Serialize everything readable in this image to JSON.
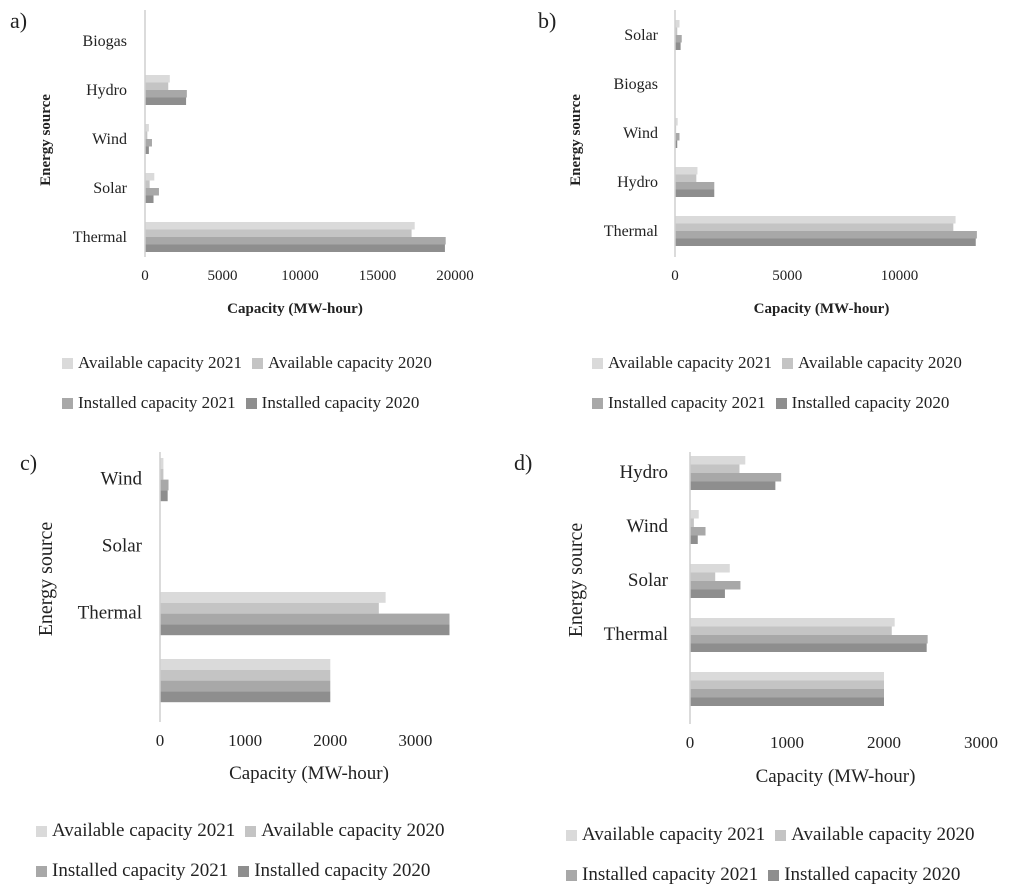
{
  "colors": {
    "available_2021": "#dadada",
    "available_2020": "#c4c4c4",
    "installed_2021": "#a8a8a8",
    "installed_2020": "#8e8e8e",
    "axis": "#cfcfcf",
    "text": "#222222"
  },
  "chart_data": [
    {
      "panel": "a)",
      "type": "bar",
      "orientation": "horizontal",
      "categories": [
        "Biogas",
        "Hydro",
        "Wind",
        "Solar",
        "Thermal"
      ],
      "series": [
        {
          "name": "Available capacity 2021",
          "values": [
            0,
            1600,
            250,
            600,
            17400
          ]
        },
        {
          "name": "Available capacity 2020",
          "values": [
            0,
            1500,
            150,
            300,
            17200
          ]
        },
        {
          "name": "Installed capacity 2021",
          "values": [
            0,
            2700,
            450,
            900,
            19400
          ]
        },
        {
          "name": "Installed capacity 2020",
          "values": [
            0,
            2650,
            250,
            550,
            19350
          ]
        }
      ],
      "xlabel": "Capacity (MW-hour)",
      "ylabel": "Energy source",
      "xlim": [
        0,
        20000
      ],
      "xticks": [
        "0",
        "5000",
        "10000",
        "15000",
        "20000"
      ],
      "legend_position": "bottom",
      "label_bold": true
    },
    {
      "panel": "b)",
      "type": "bar",
      "orientation": "horizontal",
      "categories": [
        "Solar",
        "Biogas",
        "Wind",
        "Hydro",
        "Thermal"
      ],
      "series": [
        {
          "name": "Available capacity 2021",
          "values": [
            200,
            0,
            120,
            1000,
            12500
          ]
        },
        {
          "name": "Available capacity 2020",
          "values": [
            100,
            0,
            50,
            950,
            12400
          ]
        },
        {
          "name": "Installed capacity 2021",
          "values": [
            300,
            0,
            200,
            1750,
            13450
          ]
        },
        {
          "name": "Installed capacity 2020",
          "values": [
            250,
            0,
            100,
            1750,
            13400
          ]
        }
      ],
      "xlabel": "Capacity (MW-hour)",
      "ylabel": "Energy source",
      "xlim": [
        0,
        13500
      ],
      "xticks": [
        "0",
        "5000",
        "10000"
      ],
      "legend_position": "bottom",
      "label_bold": true
    },
    {
      "panel": "c)",
      "type": "bar",
      "orientation": "horizontal",
      "categories": [
        "Wind",
        "Solar",
        "Thermal",
        ""
      ],
      "series": [
        {
          "name": "Available capacity 2021",
          "values": [
            40,
            0,
            2650,
            2000
          ]
        },
        {
          "name": "Available capacity 2020",
          "values": [
            40,
            0,
            2570,
            2000
          ]
        },
        {
          "name": "Installed capacity 2021",
          "values": [
            100,
            0,
            3400,
            2000
          ]
        },
        {
          "name": "Installed capacity 2020",
          "values": [
            90,
            0,
            3400,
            2000
          ]
        }
      ],
      "xlabel": "Capacity (MW-hour)",
      "ylabel": "Energy source",
      "xlim": [
        0,
        3500
      ],
      "xticks": [
        "0",
        "1000",
        "2000",
        "3000"
      ],
      "legend_position": "bottom",
      "label_bold": false
    },
    {
      "panel": "d)",
      "type": "bar",
      "orientation": "horizontal",
      "categories": [
        "Hydro",
        "Wind",
        "Solar",
        "Thermal",
        ""
      ],
      "series": [
        {
          "name": "Available capacity 2021",
          "values": [
            570,
            90,
            410,
            2110,
            2000
          ]
        },
        {
          "name": "Available capacity 2020",
          "values": [
            510,
            40,
            260,
            2080,
            2000
          ]
        },
        {
          "name": "Installed capacity 2021",
          "values": [
            940,
            160,
            520,
            2450,
            2000
          ]
        },
        {
          "name": "Installed capacity 2020",
          "values": [
            880,
            80,
            360,
            2440,
            2000
          ]
        }
      ],
      "xlabel": "Capacity (MW-hour)",
      "ylabel": "Energy source",
      "xlim": [
        0,
        3000
      ],
      "xticks": [
        "0",
        "1000",
        "2000",
        "3000"
      ],
      "legend_position": "bottom",
      "label_bold": false
    }
  ]
}
